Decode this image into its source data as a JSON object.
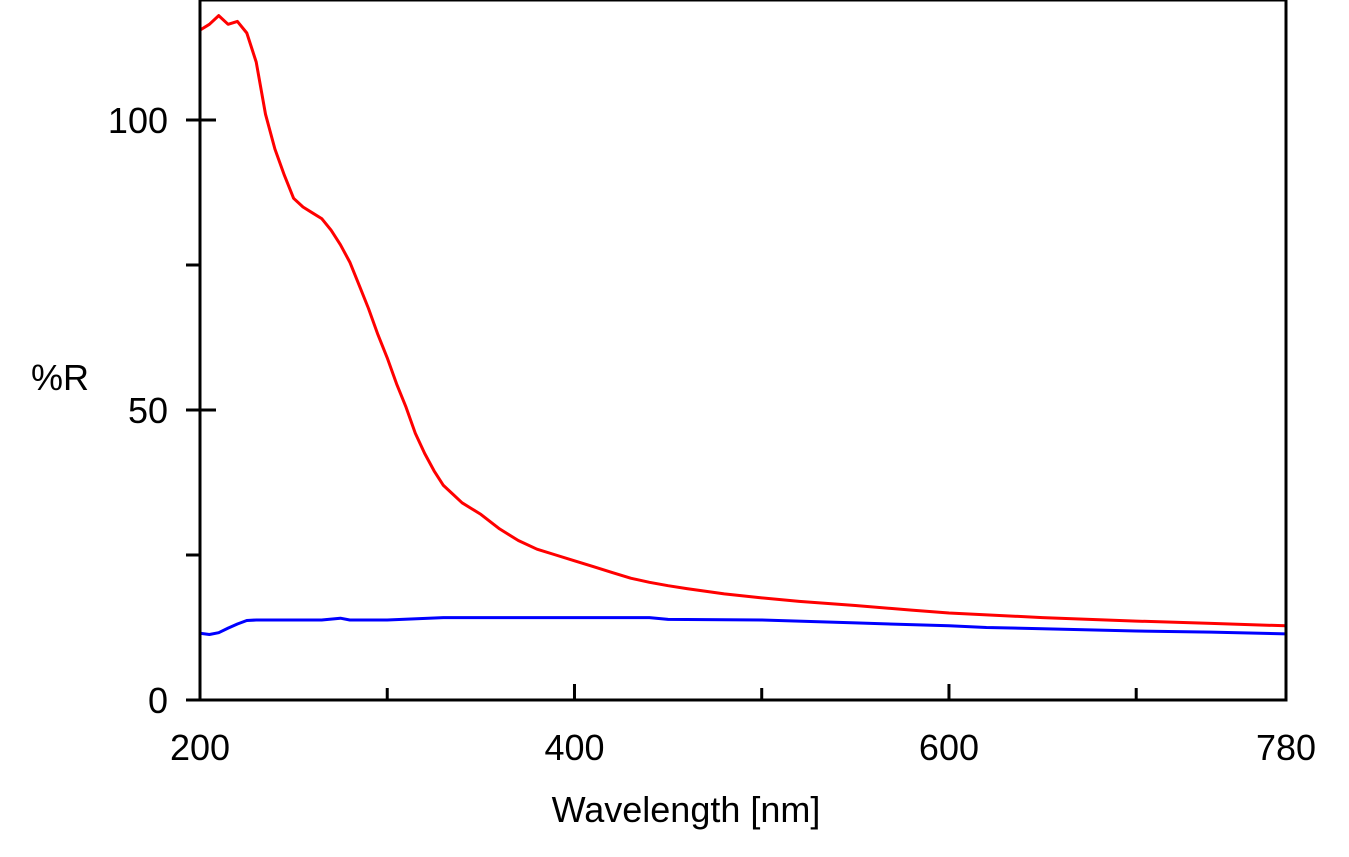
{
  "chart_data": {
    "type": "line",
    "title": "",
    "xlabel": "Wavelength [nm]",
    "ylabel": "%R",
    "xlim": [
      200,
      780
    ],
    "ylim": [
      0,
      120
    ],
    "x_ticks_major": [
      200,
      400,
      600,
      780
    ],
    "x_ticks_minor": [
      300,
      500,
      700
    ],
    "y_ticks_major": [
      0,
      50,
      100
    ],
    "y_ticks_minor": [
      25,
      75
    ],
    "grid": false,
    "legend": "none",
    "series": [
      {
        "color": "#ff0000",
        "x": [
          200,
          205,
          210,
          215,
          220,
          225,
          230,
          235,
          240,
          245,
          250,
          255,
          260,
          265,
          270,
          275,
          280,
          285,
          290,
          295,
          300,
          305,
          310,
          315,
          320,
          325,
          330,
          335,
          340,
          345,
          350,
          360,
          370,
          380,
          390,
          400,
          410,
          420,
          430,
          440,
          450,
          460,
          480,
          500,
          520,
          550,
          580,
          600,
          650,
          700,
          740,
          780
        ],
        "y": [
          115.5,
          116.5,
          118,
          116.5,
          117,
          115,
          110,
          101,
          95,
          90.5,
          86.5,
          85,
          84,
          83,
          81,
          78.5,
          75.5,
          71.5,
          67.5,
          63,
          59,
          54.5,
          50.5,
          46,
          42.5,
          39.5,
          37,
          35.5,
          34,
          33,
          32,
          29.5,
          27.5,
          26,
          25,
          24,
          23,
          22,
          21,
          20.3,
          19.7,
          19.2,
          18.3,
          17.6,
          17,
          16.3,
          15.5,
          15,
          14.2,
          13.6,
          13.2,
          12.8
        ]
      },
      {
        "color": "#0000ff",
        "x": [
          200,
          205,
          210,
          215,
          220,
          225,
          230,
          250,
          265,
          275,
          280,
          300,
          330,
          350,
          400,
          440,
          450,
          500,
          550,
          600,
          620,
          650,
          700,
          740,
          780
        ],
        "y": [
          11.5,
          11.3,
          11.6,
          12.4,
          13.1,
          13.7,
          13.8,
          13.8,
          13.8,
          14.1,
          13.8,
          13.8,
          14.2,
          14.2,
          14.2,
          14.2,
          13.9,
          13.8,
          13.3,
          12.8,
          12.5,
          12.3,
          11.9,
          11.7,
          11.4
        ]
      }
    ]
  }
}
